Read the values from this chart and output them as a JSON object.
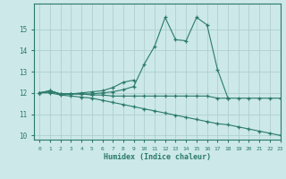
{
  "xlabel": "Humidex (Indice chaleur)",
  "background_color": "#cce8e8",
  "line_color": "#2a7a6a",
  "grid_color": "#b0d0d0",
  "xlim": [
    -0.5,
    23
  ],
  "ylim": [
    9.8,
    16.2
  ],
  "yticks": [
    10,
    11,
    12,
    13,
    14,
    15
  ],
  "xtick_labels": [
    "0",
    "1",
    "2",
    "3",
    "4",
    "5",
    "6",
    "7",
    "8",
    "9",
    "10",
    "11",
    "12",
    "13",
    "14",
    "15",
    "16",
    "17",
    "18",
    "19",
    "20",
    "21",
    "22",
    "23"
  ],
  "series1_x": [
    0,
    1,
    2,
    3,
    4,
    5,
    6,
    7,
    8,
    9,
    10,
    11,
    12,
    13,
    14,
    15,
    16,
    17,
    18
  ],
  "series1_y": [
    12.0,
    12.1,
    11.95,
    11.95,
    11.95,
    11.95,
    12.0,
    12.05,
    12.15,
    12.3,
    13.35,
    14.2,
    15.55,
    14.5,
    14.45,
    15.55,
    15.2,
    13.1,
    11.75
  ],
  "series2_x": [
    0,
    1,
    2,
    3,
    4,
    5,
    6,
    7,
    8,
    9
  ],
  "series2_y": [
    12.0,
    12.1,
    11.95,
    11.95,
    12.0,
    12.05,
    12.1,
    12.25,
    12.5,
    12.6
  ],
  "series3_x": [
    0,
    1,
    2,
    3,
    4,
    5,
    6,
    7,
    8,
    9,
    10,
    11,
    12,
    13,
    14,
    15,
    16,
    17,
    18,
    19,
    20,
    21,
    22,
    23
  ],
  "series3_y": [
    12.0,
    12.05,
    11.95,
    11.95,
    11.95,
    11.9,
    11.9,
    11.85,
    11.85,
    11.85,
    11.85,
    11.85,
    11.85,
    11.85,
    11.85,
    11.85,
    11.85,
    11.75,
    11.75,
    11.75,
    11.75,
    11.75,
    11.75,
    11.75
  ],
  "series4_x": [
    0,
    1,
    2,
    3,
    4,
    5,
    6,
    7,
    8,
    9,
    10,
    11,
    12,
    13,
    14,
    15,
    16,
    17,
    18,
    19,
    20,
    21,
    22,
    23
  ],
  "series4_y": [
    12.0,
    12.0,
    11.9,
    11.85,
    11.8,
    11.75,
    11.65,
    11.55,
    11.45,
    11.35,
    11.25,
    11.15,
    11.05,
    10.95,
    10.85,
    10.75,
    10.65,
    10.55,
    10.5,
    10.4,
    10.3,
    10.2,
    10.1,
    10.0
  ]
}
